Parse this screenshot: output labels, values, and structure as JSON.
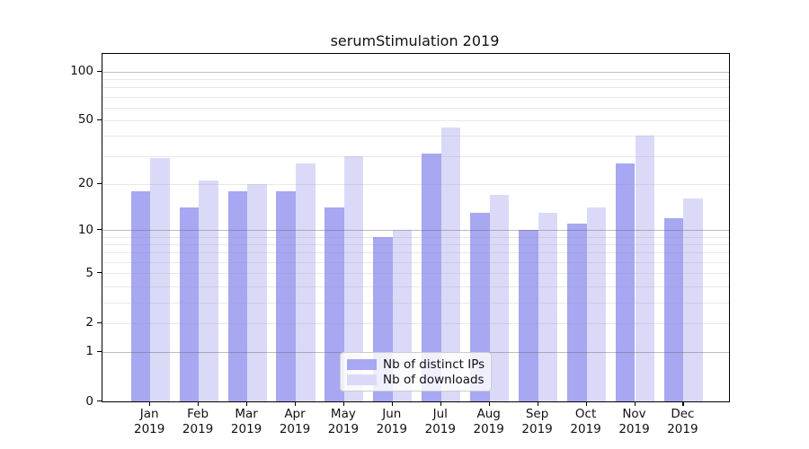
{
  "title": "serumStimulation 2019",
  "legend": {
    "items": [
      {
        "label": "Nb of distinct IPs",
        "color": "#a7a7f2"
      },
      {
        "label": "Nb of downloads",
        "color": "#dadaf8"
      }
    ],
    "position": "lower center"
  },
  "axes": {
    "y_tick_labels_top_to_bottom": [
      "100",
      "50",
      "20",
      "10",
      "5",
      "2",
      "1",
      "0"
    ],
    "x_tick_year_line": "2019"
  },
  "chart_data": {
    "type": "bar",
    "title": "serumStimulation 2019",
    "categories": [
      "Jan 2019",
      "Feb 2019",
      "Mar 2019",
      "Apr 2019",
      "May 2019",
      "Jun 2019",
      "Jul 2019",
      "Aug 2019",
      "Sep 2019",
      "Oct 2019",
      "Nov 2019",
      "Dec 2019"
    ],
    "month_names": [
      "Jan",
      "Feb",
      "Mar",
      "Apr",
      "May",
      "Jun",
      "Jul",
      "Aug",
      "Sep",
      "Oct",
      "Nov",
      "Dec"
    ],
    "series": [
      {
        "name": "Nb of distinct IPs",
        "color": "#a7a7f2",
        "values": [
          18,
          14,
          18,
          18,
          14,
          9,
          31,
          13,
          10,
          11,
          27,
          12
        ]
      },
      {
        "name": "Nb of downloads",
        "color": "#dadaf8",
        "values": [
          29,
          21,
          20,
          27,
          30,
          10,
          45,
          17,
          13,
          14,
          40,
          16
        ]
      }
    ],
    "xlabel": "",
    "ylabel": "",
    "y_scale": "log2(1+value)",
    "ylim": [
      0,
      128
    ],
    "y_ticks": [
      0,
      1,
      2,
      5,
      10,
      20,
      50,
      100
    ],
    "y_major_gridlines": [
      1,
      10,
      100
    ],
    "y_minor_gridlines": [
      2,
      3,
      4,
      5,
      6,
      7,
      8,
      9,
      20,
      30,
      40,
      50,
      60,
      70,
      80,
      90
    ],
    "grid": "on, gridlines drawn above bars",
    "legend_position": "lower center"
  }
}
